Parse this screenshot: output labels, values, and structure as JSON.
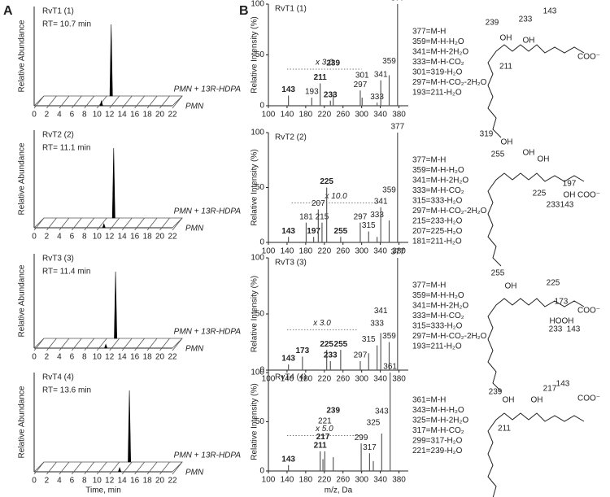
{
  "panel_labels": [
    "A",
    "B"
  ],
  "chart_data": [
    {
      "type": "chromatogram",
      "title": "RvT1 (1)",
      "subtitle": "RT= 10.7 min",
      "y_label": "Relative Abundance",
      "xlim": [
        0,
        22
      ],
      "xticks": [
        0,
        2,
        4,
        6,
        8,
        10,
        12,
        14,
        16,
        18,
        20,
        22
      ],
      "series": [
        {
          "name": "PMN + 13R-HDPA",
          "color": "#000000",
          "x": [
            10.7
          ],
          "values": [
            100
          ]
        },
        {
          "name": "PMN",
          "color": "#000000",
          "x": [
            10.7
          ],
          "values": [
            6
          ]
        }
      ]
    },
    {
      "type": "chromatogram",
      "title": "RvT2 (2)",
      "subtitle": "RT= 11.1 min",
      "y_label": "Relative Abundance",
      "xlim": [
        0,
        22
      ],
      "xticks": [
        0,
        2,
        4,
        6,
        8,
        10,
        12,
        14,
        16,
        18,
        20,
        22
      ],
      "series": [
        {
          "name": "PMN + 13R-HDPA",
          "color": "#000000",
          "x": [
            11.1
          ],
          "values": [
            100
          ]
        },
        {
          "name": "PMN",
          "color": "#000000",
          "x": [
            11.1
          ],
          "values": [
            5
          ]
        }
      ]
    },
    {
      "type": "chromatogram",
      "title": "RvT3 (3)",
      "subtitle": "RT= 11.4 min",
      "y_label": "Relative Abundance",
      "xlim": [
        0,
        22
      ],
      "xticks": [
        0,
        2,
        4,
        6,
        8,
        10,
        12,
        14,
        16,
        18,
        20,
        22
      ],
      "series": [
        {
          "name": "PMN + 13R-HDPA",
          "color": "#000000",
          "x": [
            11.4
          ],
          "values": [
            100
          ]
        },
        {
          "name": "PMN",
          "color": "#000000",
          "x": [
            11.4
          ],
          "values": [
            5
          ]
        }
      ]
    },
    {
      "type": "chromatogram",
      "title": "RvT4 (4)",
      "subtitle": "RT= 13.6 min",
      "y_label": "Relative Abundance",
      "x_label": "Time, min",
      "xlim": [
        0,
        22
      ],
      "xticks": [
        0,
        2,
        4,
        6,
        8,
        10,
        12,
        14,
        16,
        18,
        20,
        22
      ],
      "series": [
        {
          "name": "PMN + 13R-HDPA",
          "color": "#000000",
          "x": [
            13.6
          ],
          "values": [
            100
          ]
        },
        {
          "name": "PMN",
          "color": "#000000",
          "x": [
            13.6
          ],
          "values": [
            5
          ]
        }
      ]
    },
    {
      "type": "spectrum",
      "title": "RvT1 (1)",
      "y_label": "Relative Intensity (%)",
      "color": "#5a5a5a",
      "xlim": [
        100,
        400
      ],
      "xticks": [
        100,
        140,
        180,
        220,
        260,
        300,
        340,
        380
      ],
      "ylim": [
        0,
        100
      ],
      "yticks": [
        0,
        50,
        100
      ],
      "x": [
        143,
        193,
        211,
        233,
        239,
        297,
        301,
        333,
        341,
        359,
        377
      ],
      "values": [
        10,
        8,
        22,
        5,
        12,
        15,
        8,
        3,
        25,
        30,
        100
      ],
      "label_bold": [
        true,
        false,
        true,
        true,
        true,
        false,
        false,
        false,
        false,
        false,
        false
      ],
      "scale_note": "x 3.0",
      "zoom_xlim": [
        140,
        300
      ],
      "fragments": [
        "377=M-H",
        "359=M-H-H₂O",
        "341=M-H-2H₂O",
        "333=M-H-CO₂",
        "301=319-H₂O",
        "297=M-H-CO₂-2H₂O",
        "193=211-H₂O"
      ],
      "structure_labels": [
        "239",
        "233",
        "143",
        "OH",
        "OH",
        "211",
        "COO⁻",
        "319",
        "OH"
      ]
    },
    {
      "type": "spectrum",
      "title": "RvT2 (2)",
      "y_label": "Relative Intensity (%)",
      "color": "#5a5a5a",
      "xlim": [
        100,
        400
      ],
      "xticks": [
        100,
        140,
        180,
        220,
        260,
        300,
        340,
        380
      ],
      "ylim": [
        0,
        100
      ],
      "yticks": [
        0,
        50,
        100
      ],
      "x": [
        143,
        181,
        197,
        207,
        215,
        225,
        255,
        297,
        315,
        333,
        341,
        359,
        377
      ],
      "values": [
        5,
        18,
        5,
        30,
        18,
        50,
        5,
        18,
        10,
        5,
        32,
        20,
        100
      ],
      "label_bold": [
        true,
        false,
        true,
        false,
        false,
        true,
        true,
        false,
        false,
        false,
        false,
        false,
        false
      ],
      "scale_note": "x 10.0",
      "zoom_xlim": [
        150,
        340
      ],
      "fragments": [
        "377=M-H",
        "359=M-H-H₂O",
        "341=M-H-2H₂O",
        "333=M-H-CO₂",
        "315=333-H₂O",
        "297=M-H-CO₂-2H₂O",
        "215=233-H₂O",
        "207=225-H₂O",
        "181=211-H₂O"
      ],
      "structure_labels": [
        "255",
        "OH",
        "OH",
        "225",
        "197",
        "OH",
        "233",
        "143",
        "COO⁻"
      ]
    },
    {
      "type": "spectrum",
      "title": "RvT3 (3)",
      "y_label": "Relative Intensity (%)",
      "color": "#5a5a5a",
      "xlim": [
        100,
        400
      ],
      "xticks": [
        100,
        140,
        180,
        220,
        260,
        300,
        340,
        380
      ],
      "ylim": [
        0,
        100
      ],
      "yticks": [
        0,
        50,
        100
      ],
      "x": [
        143,
        173,
        225,
        233,
        255,
        297,
        315,
        333,
        341,
        359,
        377
      ],
      "values": [
        5,
        12,
        18,
        8,
        18,
        8,
        15,
        22,
        33,
        25,
        100
      ],
      "label_bold": [
        true,
        true,
        true,
        true,
        true,
        false,
        false,
        false,
        false,
        false,
        false
      ],
      "scale_note": "x 3.0",
      "zoom_xlim": [
        140,
        290
      ],
      "fragments": [
        "377=M-H",
        "359=M-H-H₂O",
        "341=M-H-2H₂O",
        "333=M-H-CO₂",
        "315=333-H₂O",
        "297=M-H-CO₂-2H₂O",
        "193=211-H₂O"
      ],
      "structure_labels": [
        "255",
        "OH",
        "225",
        "173",
        "COO⁻",
        "HO",
        "OH",
        "233",
        "143"
      ]
    },
    {
      "type": "spectrum",
      "title": "RvT4 (4)",
      "y_label": "Relative Intensity (%)",
      "x_label": "m/z, Da",
      "color": "#5a5a5a",
      "xlim": [
        100,
        400
      ],
      "xticks": [
        100,
        140,
        180,
        220,
        260,
        300,
        340,
        380
      ],
      "ylim": [
        0,
        100
      ],
      "yticks": [
        0,
        50,
        100
      ],
      "x": [
        143,
        211,
        217,
        221,
        239,
        299,
        317,
        325,
        343,
        361
      ],
      "values": [
        6,
        20,
        12,
        20,
        14,
        28,
        18,
        10,
        38,
        100
      ],
      "label_bold": [
        true,
        true,
        true,
        false,
        true,
        false,
        false,
        false,
        false,
        false
      ],
      "scale_note": "x 5.0",
      "zoom_xlim": [
        140,
        300
      ],
      "fragments": [
        "361=M-H",
        "343=M-H-H₂O",
        "325=M-H-2H₂O",
        "317=M-H-CO₂",
        "299=317-H₂O",
        "221=239-H₂O"
      ],
      "structure_labels": [
        "239",
        "217",
        "143",
        "OH",
        "OH",
        "211",
        "COO⁻"
      ]
    }
  ]
}
